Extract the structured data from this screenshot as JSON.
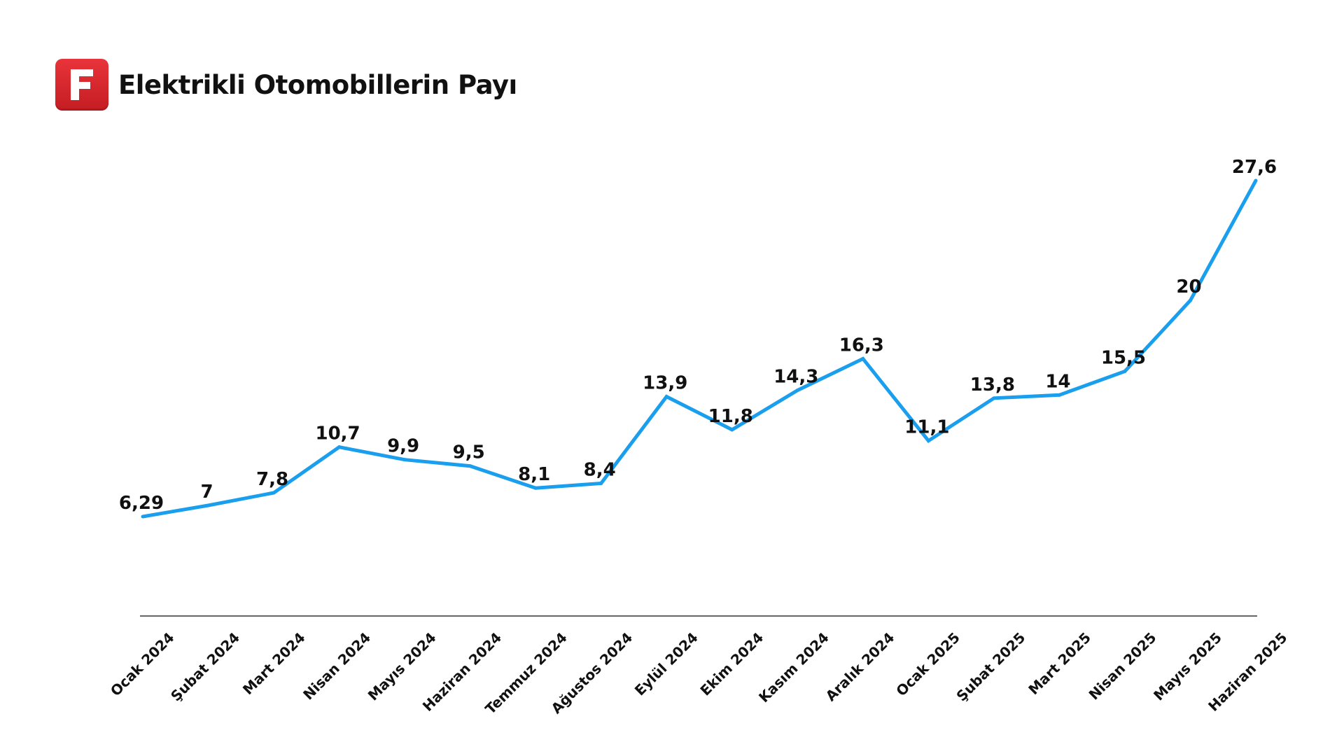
{
  "header": {
    "logo_letter": "F",
    "logo_color": "#d42a30",
    "title": "Elektrikli Otomobillerin Payı"
  },
  "chart_data": {
    "type": "line",
    "title": "Elektrikli Otomobillerin Payı",
    "xlabel": "",
    "ylabel": "",
    "categories": [
      "Ocak 2024",
      "Şubat 2024",
      "Mart 2024",
      "Nisan 2024",
      "Mayıs 2024",
      "Haziran 2024",
      "Temmuz 2024",
      "Ağustos 2024",
      "Eylül 2024",
      "Ekim 2024",
      "Kasım 2024",
      "Aralık 2024",
      "Ocak 2025",
      "Şubat 2025",
      "Mart 2025",
      "Nisan 2025",
      "Mayıs 2025",
      "Haziran 2025"
    ],
    "series": [
      {
        "values": [
          6.29,
          7,
          7.8,
          10.7,
          9.9,
          9.5,
          8.1,
          8.4,
          13.9,
          11.8,
          14.3,
          16.3,
          11.1,
          13.8,
          14,
          15.5,
          20,
          27.6
        ],
        "labels": [
          "6,29",
          "7",
          "7,8",
          "10,7",
          "9,9",
          "9,5",
          "8,1",
          "8,4",
          "13,9",
          "11,8",
          "14,3",
          "16,3",
          "11,1",
          "13,8",
          "14",
          "15,5",
          "20",
          "27,6"
        ],
        "color": "#1a9eee"
      }
    ],
    "grid": false,
    "legend": "none",
    "axis_color": "#333333"
  }
}
